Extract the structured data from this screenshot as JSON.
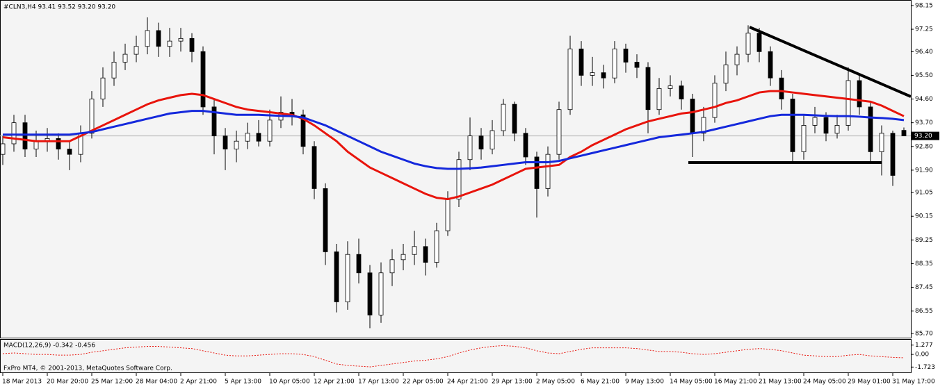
{
  "chart_data": {
    "type": "candlestick",
    "title": "#CLN3,H4  93.41 93.52 93.20 93.20",
    "footer": "FxPro MT4, © 2001-2013, MetaQuotes Software Corp.",
    "categories": [
      "18 Mar 2013",
      null,
      null,
      null,
      "20 Mar 20:00",
      null,
      null,
      null,
      "25 Mar 12:00",
      null,
      null,
      null,
      "28 Mar 04:00",
      null,
      null,
      null,
      "2 Apr 21:00",
      null,
      null,
      null,
      "5 Apr 13:00",
      null,
      null,
      null,
      "10 Apr 05:00",
      null,
      null,
      null,
      "12 Apr 21:00",
      null,
      null,
      null,
      "17 Apr 13:00",
      null,
      null,
      null,
      "22 Apr 05:00",
      null,
      null,
      null,
      "24 Apr 21:00",
      null,
      null,
      null,
      "29 Apr 13:00",
      null,
      null,
      null,
      "2 May 05:00",
      null,
      null,
      null,
      "6 May 21:00",
      null,
      null,
      null,
      "9 May 13:00",
      null,
      null,
      null,
      "14 May 05:00",
      null,
      null,
      null,
      "16 May 21:00",
      null,
      null,
      null,
      "21 May 13:00",
      null,
      null,
      null,
      "24 May 05:00",
      null,
      null,
      null,
      "29 May 01:00",
      null,
      null,
      null,
      "31 May 17:00",
      null
    ],
    "open": [
      92.5,
      92.9,
      93.7,
      92.7,
      93.0,
      93.1,
      92.7,
      92.5,
      93.3,
      94.6,
      95.4,
      96.0,
      96.3,
      96.6,
      97.2,
      96.6,
      96.8,
      96.9,
      96.4,
      94.3,
      93.2,
      92.7,
      93.0,
      93.3,
      93.0,
      93.8,
      94.1,
      94.0,
      92.8,
      91.2,
      88.8,
      86.9,
      88.7,
      88.0,
      86.4,
      88.0,
      88.5,
      88.7,
      89.0,
      88.4,
      89.6,
      90.8,
      92.3,
      93.2,
      92.7,
      93.4,
      94.4,
      93.3,
      92.4,
      91.2,
      92.5,
      94.2,
      96.5,
      95.5,
      95.6,
      95.4,
      96.5,
      96.0,
      95.8,
      94.2,
      95.0,
      95.1,
      94.6,
      93.3,
      93.9,
      95.2,
      95.9,
      96.3,
      97.1,
      96.4,
      95.4,
      94.6,
      92.6,
      93.6,
      93.9,
      93.3,
      93.6,
      95.3,
      94.3,
      92.6,
      93.3,
      93.41
    ],
    "high": [
      93.2,
      94.0,
      94.0,
      93.4,
      93.5,
      93.3,
      93.0,
      93.6,
      94.9,
      95.8,
      96.4,
      96.7,
      97.0,
      97.7,
      97.5,
      97.3,
      97.3,
      97.1,
      96.6,
      94.6,
      93.5,
      93.4,
      93.7,
      93.8,
      94.2,
      94.7,
      94.6,
      94.2,
      93.0,
      91.4,
      89.1,
      89.2,
      89.3,
      88.3,
      88.4,
      88.9,
      89.1,
      89.6,
      89.3,
      89.9,
      91.1,
      92.6,
      93.9,
      93.5,
      93.8,
      94.6,
      94.5,
      93.5,
      92.6,
      92.8,
      94.5,
      97.0,
      96.8,
      96.2,
      95.9,
      96.8,
      96.7,
      96.3,
      96.0,
      95.4,
      95.5,
      95.3,
      94.8,
      94.3,
      95.5,
      96.4,
      96.6,
      97.4,
      97.3,
      96.6,
      95.7,
      94.8,
      94.0,
      94.3,
      94.1,
      94.0,
      95.8,
      95.5,
      94.5,
      93.6,
      93.4,
      93.52
    ],
    "low": [
      92.1,
      92.6,
      92.4,
      92.4,
      92.6,
      92.3,
      91.9,
      92.2,
      93.1,
      94.3,
      95.1,
      95.7,
      96.0,
      96.3,
      96.2,
      96.2,
      96.4,
      96.0,
      94.0,
      92.5,
      91.9,
      92.2,
      92.7,
      92.8,
      92.8,
      93.5,
      93.6,
      92.5,
      90.8,
      88.3,
      86.5,
      86.6,
      87.6,
      85.9,
      86.1,
      87.5,
      88.1,
      88.3,
      87.9,
      88.2,
      89.4,
      90.5,
      91.9,
      92.3,
      92.5,
      93.2,
      93.0,
      92.1,
      90.1,
      90.9,
      92.3,
      94.0,
      95.1,
      95.1,
      95.0,
      95.2,
      95.6,
      95.4,
      93.3,
      94.0,
      94.7,
      94.2,
      92.4,
      93.0,
      93.7,
      94.9,
      95.5,
      96.0,
      96.0,
      95.1,
      94.2,
      92.2,
      92.3,
      93.3,
      93.0,
      93.1,
      93.4,
      94.0,
      92.2,
      91.7,
      91.3,
      93.2
    ],
    "close": [
      92.9,
      93.7,
      92.7,
      93.0,
      93.1,
      92.7,
      92.5,
      93.3,
      94.6,
      95.4,
      96.0,
      96.3,
      96.6,
      97.2,
      96.6,
      96.8,
      96.9,
      96.4,
      94.3,
      93.2,
      92.7,
      93.0,
      93.3,
      93.0,
      93.8,
      94.1,
      94.0,
      92.8,
      91.2,
      88.8,
      86.9,
      88.7,
      88.0,
      86.4,
      88.0,
      88.5,
      88.7,
      89.0,
      88.4,
      89.6,
      90.8,
      92.3,
      93.2,
      92.7,
      93.4,
      94.4,
      93.3,
      92.4,
      91.2,
      92.5,
      94.2,
      96.5,
      95.5,
      95.6,
      95.4,
      96.5,
      96.0,
      95.8,
      94.2,
      95.0,
      95.1,
      94.6,
      93.3,
      93.9,
      95.2,
      95.9,
      96.3,
      97.1,
      96.4,
      95.4,
      94.6,
      92.6,
      93.6,
      93.9,
      93.3,
      93.6,
      95.3,
      94.3,
      92.6,
      93.3,
      91.7,
      93.2
    ],
    "up_color": "#ffffff",
    "down_color": "#000000",
    "series": [
      {
        "color": "#e8140c",
        "values": [
          93.15,
          93.1,
          93.05,
          93.0,
          93.0,
          93.0,
          93.0,
          93.2,
          93.4,
          93.6,
          93.8,
          94.0,
          94.2,
          94.4,
          94.55,
          94.65,
          94.75,
          94.8,
          94.75,
          94.6,
          94.45,
          94.3,
          94.2,
          94.15,
          94.1,
          94.05,
          94.0,
          93.85,
          93.6,
          93.3,
          93.0,
          92.6,
          92.3,
          92.0,
          91.8,
          91.6,
          91.4,
          91.2,
          91.0,
          90.85,
          90.8,
          90.9,
          91.05,
          91.2,
          91.35,
          91.55,
          91.75,
          91.95,
          92.0,
          92.05,
          92.1,
          92.4,
          92.6,
          92.85,
          93.05,
          93.25,
          93.45,
          93.6,
          93.75,
          93.85,
          93.95,
          94.05,
          94.1,
          94.2,
          94.3,
          94.45,
          94.55,
          94.7,
          94.85,
          94.9,
          94.9,
          94.85,
          94.8,
          94.75,
          94.7,
          94.65,
          94.6,
          94.55,
          94.5,
          94.35,
          94.15,
          93.95
        ]
      },
      {
        "color": "#1428dc",
        "values": [
          93.25,
          93.25,
          93.25,
          93.25,
          93.25,
          93.25,
          93.25,
          93.3,
          93.35,
          93.45,
          93.55,
          93.65,
          93.75,
          93.85,
          93.95,
          94.05,
          94.1,
          94.15,
          94.15,
          94.1,
          94.05,
          94.0,
          94.0,
          94.0,
          93.98,
          93.96,
          93.95,
          93.9,
          93.75,
          93.6,
          93.4,
          93.2,
          93.0,
          92.8,
          92.6,
          92.45,
          92.3,
          92.15,
          92.05,
          91.98,
          91.95,
          91.95,
          91.97,
          92.0,
          92.05,
          92.1,
          92.15,
          92.2,
          92.2,
          92.2,
          92.25,
          92.35,
          92.45,
          92.55,
          92.65,
          92.75,
          92.85,
          92.95,
          93.05,
          93.15,
          93.2,
          93.25,
          93.3,
          93.35,
          93.45,
          93.55,
          93.65,
          93.75,
          93.85,
          93.95,
          94.0,
          94.0,
          94.0,
          93.98,
          93.96,
          93.95,
          93.95,
          93.93,
          93.9,
          93.88,
          93.85,
          93.8
        ]
      }
    ],
    "ylim": [
      85.54,
      98.36
    ],
    "yticks": [
      98.15,
      97.25,
      {
        "value": 96.4,
        "label": "96.40"
      },
      {
        "value": 95.5,
        "label": "95.50"
      },
      {
        "value": 94.6,
        "label": "94.60"
      },
      {
        "value": 93.7,
        "label": "93.70"
      },
      {
        "value": 92.8,
        "label": "92.80"
      },
      {
        "value": 91.9,
        "label": "91.90"
      },
      91.05,
      90.15,
      89.25,
      88.35,
      87.45,
      86.55,
      {
        "value": 85.7,
        "label": "85.70"
      }
    ],
    "price_marker": {
      "value": 93.2,
      "label": "93.20"
    },
    "indicator": {
      "label": "MACD(12,26,9) -0.342 -0.456",
      "color": "#e8140c",
      "values": [
        0.1,
        0.2,
        0.1,
        0.0,
        0.0,
        -0.1,
        -0.1,
        0.0,
        0.3,
        0.5,
        0.7,
        0.9,
        1.0,
        1.1,
        1.1,
        1.0,
        0.9,
        0.8,
        0.5,
        0.2,
        -0.1,
        -0.2,
        -0.2,
        -0.1,
        0.0,
        0.1,
        0.1,
        0.0,
        -0.3,
        -0.8,
        -1.3,
        -1.5,
        -1.6,
        -1.7,
        -1.5,
        -1.3,
        -1.1,
        -0.9,
        -0.8,
        -0.6,
        -0.3,
        0.2,
        0.6,
        0.9,
        1.1,
        1.2,
        1.1,
        0.9,
        0.5,
        0.2,
        0.1,
        0.4,
        0.7,
        0.9,
        0.9,
        0.9,
        0.9,
        0.8,
        0.6,
        0.4,
        0.4,
        0.3,
        0.1,
        0.0,
        0.1,
        0.3,
        0.5,
        0.7,
        0.8,
        0.7,
        0.5,
        0.2,
        -0.1,
        -0.2,
        -0.3,
        -0.3,
        -0.1,
        0.0,
        -0.2,
        -0.3,
        -0.4,
        -0.46
      ],
      "ylim": [
        -2.45,
        2.0
      ],
      "yticks": [
        1.277,
        {
          "value": 0,
          "label": "0.00"
        },
        -1.723
      ]
    }
  }
}
